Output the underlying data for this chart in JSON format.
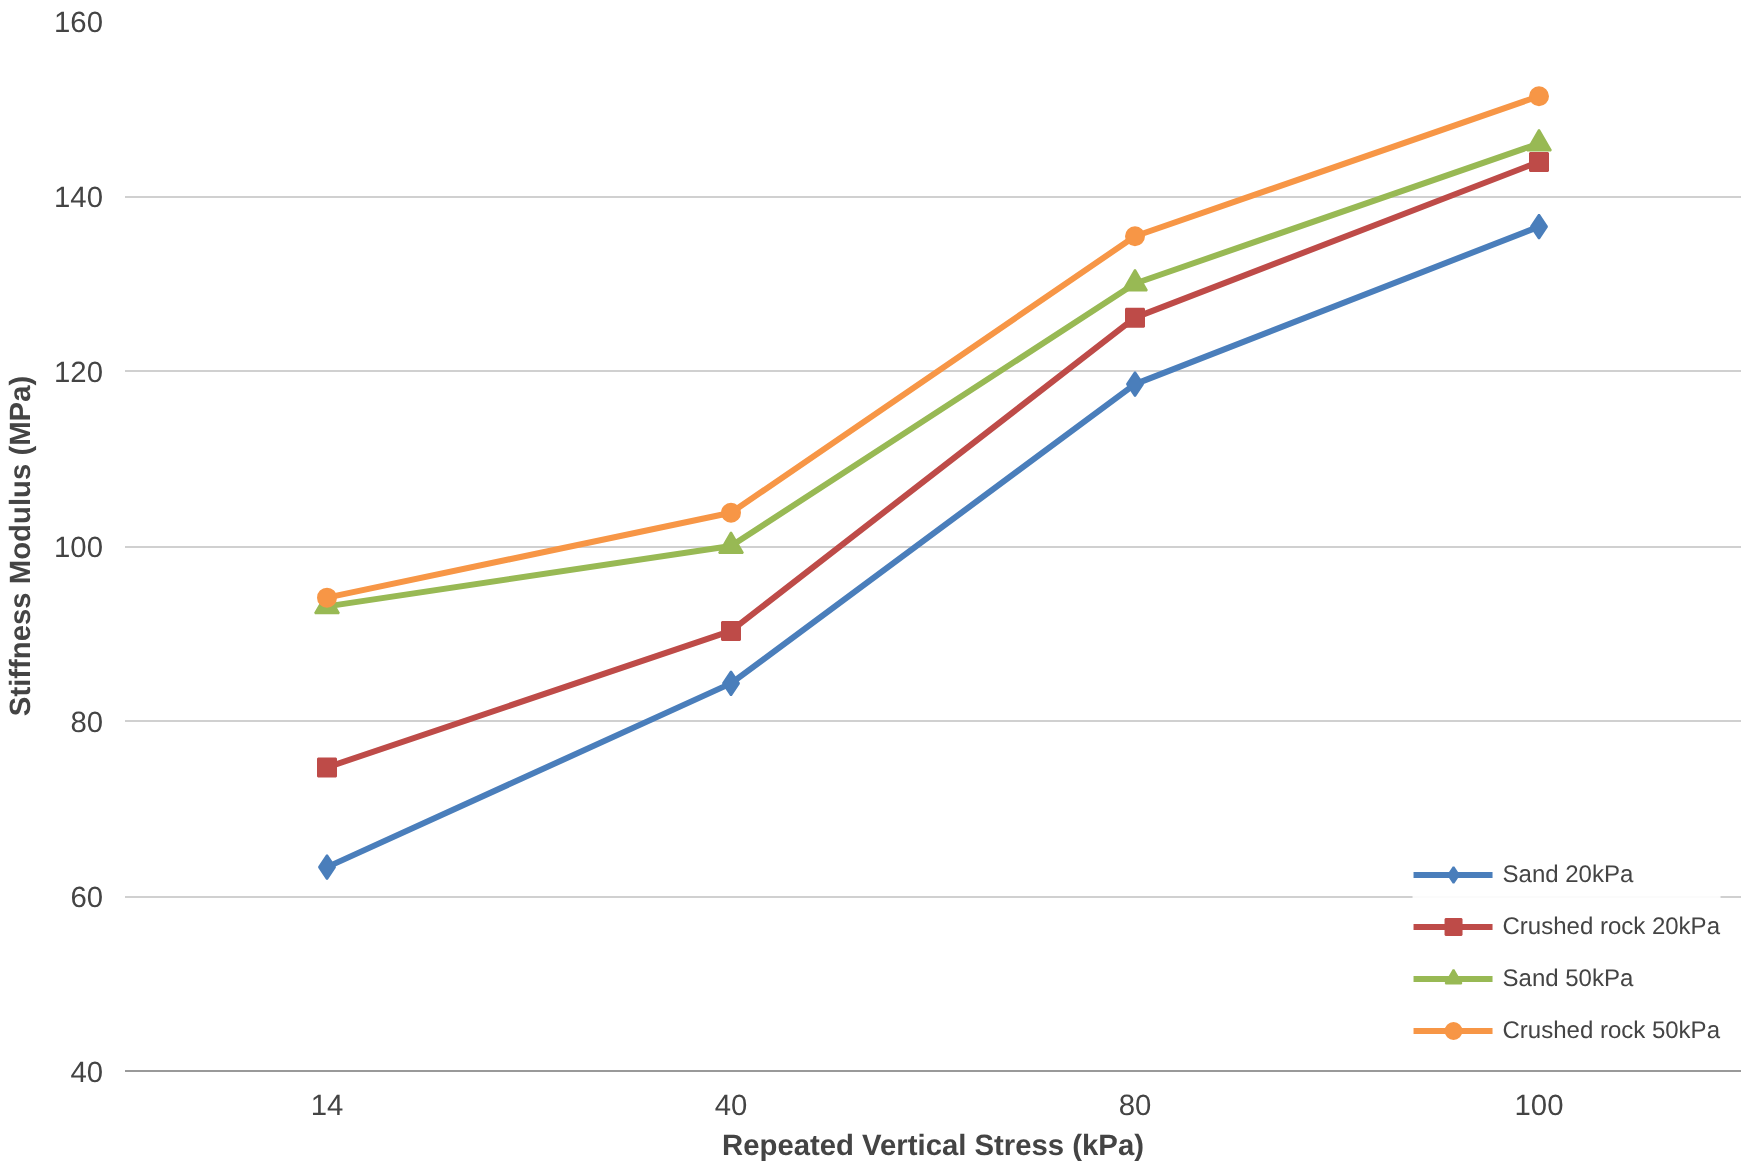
{
  "chart_data": {
    "type": "line",
    "xlabel": "Repeated Vertical Stress (kPa)",
    "ylabel": "Stiffness Modulus (MPa)",
    "categories": [
      "14",
      "40",
      "80",
      "100"
    ],
    "series": [
      {
        "name": "Sand 20kPa",
        "color": "#4a7ebb",
        "marker": "diamond",
        "values": [
          63.3,
          84.3,
          118.5,
          136.5
        ]
      },
      {
        "name": "Crushed rock 20kPa",
        "color": "#be4b48",
        "marker": "square",
        "values": [
          74.7,
          90.3,
          126.1,
          143.9
        ]
      },
      {
        "name": "Sand 50kPa",
        "color": "#98b954",
        "marker": "triangle",
        "values": [
          93.1,
          100.0,
          130.0,
          146.0
        ]
      },
      {
        "name": "Crushed rock 50kPa",
        "color": "#f79646",
        "marker": "circle",
        "values": [
          94.1,
          103.8,
          135.4,
          151.4
        ]
      }
    ],
    "ylim": [
      40,
      160
    ],
    "yticks": [
      40,
      60,
      80,
      100,
      120,
      140,
      160
    ],
    "grid": "y",
    "legend": "bottom right",
    "line_style": "solid"
  }
}
